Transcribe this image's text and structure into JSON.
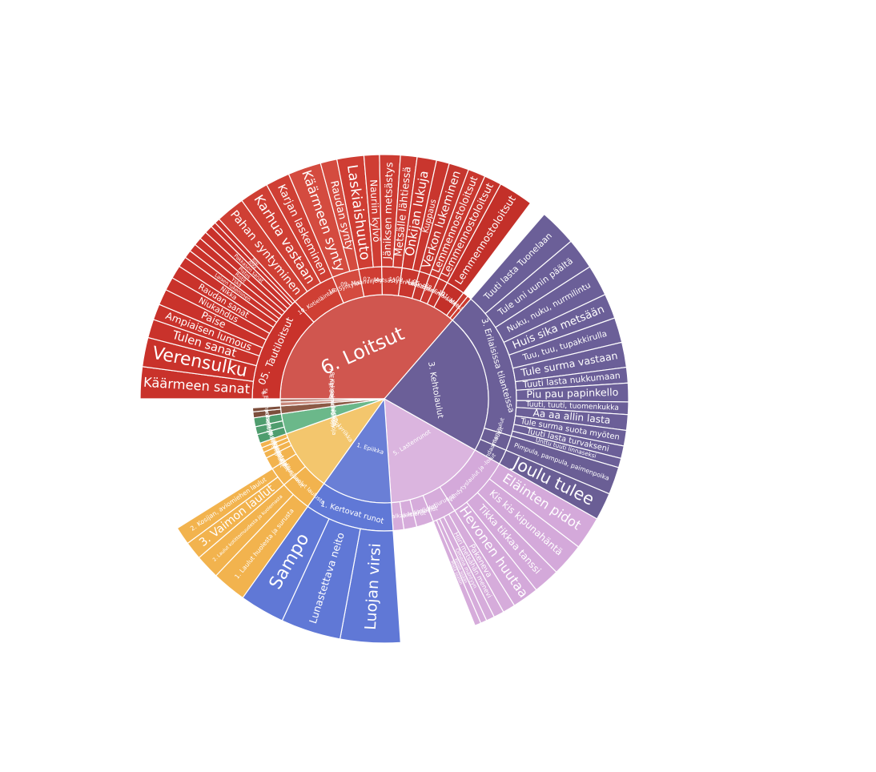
{
  "chart_data": {
    "type": "sunburst",
    "center": {
      "label": ""
    },
    "unit": "relative share (estimated)",
    "nodes": [
      {
        "id": "loitsut",
        "label": "6. Loitsut",
        "color": "#d0564f",
        "value": 30,
        "children": [
          {
            "id": "tautiloitsut",
            "label": "05. Tautiloitsut",
            "color": "#c9322b",
            "value": 8,
            "children": [
              {
                "label": "Käärmeen sanat",
                "value": 1.2
              },
              {
                "label": "Verensulku",
                "value": 1.1
              },
              {
                "label": "Tulen sanat",
                "value": 0.7
              },
              {
                "label": "Ampiaisen lumous",
                "value": 0.6
              },
              {
                "label": "Paise",
                "value": 0.6
              },
              {
                "label": "Niukahdus",
                "value": 0.5
              },
              {
                "label": "Raudan sanat",
                "value": 0.5
              },
              {
                "label": "Nikka",
                "value": 0.4
              },
              {
                "label": "Laisen lukeminen",
                "value": 0.3
              },
              {
                "label": "Yskä",
                "value": 0.3
              },
              {
                "label": "Ristit",
                "value": 0.3
              },
              {
                "label": "Pistos",
                "value": 0.3
              },
              {
                "label": "Pakkasen sanat",
                "value": 0.3
              },
              {
                "label": "Ähky",
                "value": 0.2
              },
              {
                "label": "Riisi",
                "value": 0.2
              }
            ]
          },
          {
            "id": "kotielainta",
            "label": "10. Kotieläintalous",
            "color": "#cf3f34",
            "value": 3.3,
            "children": [
              {
                "label": "Pahan syntyminen",
                "value": 0.6
              },
              {
                "label": "Karhua vastaan",
                "value": 0.6
              },
              {
                "label": "Karjan laskeminen",
                "value": 0.5
              }
            ]
          },
          {
            "id": "syntyloitsut",
            "label": "16. Syntyloitsut",
            "color": "#d44b3f",
            "value": 2.0,
            "children": [
              {
                "label": "Käärmeen synty",
                "value": 0.8
              },
              {
                "label": "Raudan synty",
                "value": 0.4
              }
            ]
          },
          {
            "id": "maanviljely",
            "label": "09. Maanviljelysloitsut",
            "color": "#cf3d33",
            "value": 1.7,
            "children": [
              {
                "label": "Laskiaishuuto",
                "value": 0.7
              },
              {
                "label": "Nauriin kylvö",
                "value": 0.4
              }
            ]
          },
          {
            "id": "metsastys",
            "label": "07. Metsästysloitsut",
            "color": "#cc3b32",
            "value": 1.5,
            "children": [
              {
                "label": "Jäniksen metsästys",
                "value": 0.5
              },
              {
                "label": "Metsälle lähtiessä",
                "value": 0.4
              }
            ]
          },
          {
            "id": "eritiloissa",
            "label": "15. Eri tiloissa",
            "color": "#c9362e",
            "value": 1.3,
            "children": [
              {
                "label": "Onkijan lukuja",
                "value": 0.6
              },
              {
                "label": "Kuppaus",
                "value": 0.4
              }
            ]
          },
          {
            "id": "kalastus",
            "label": "08. Kalastusloitsut",
            "color": "#c5362e",
            "value": 0.8,
            "children": [
              {
                "label": "Verkon lukeminen",
                "value": 0.4
              }
            ]
          },
          {
            "id": "karjan",
            "label": "11. Karjan taudit",
            "color": "#c9382f",
            "value": 0.7,
            "children": [
              {
                "label": "Lemmennostoloitsut",
                "value": 0.4
              }
            ]
          },
          {
            "id": "parannus",
            "label": "06. Parannusloitsut",
            "color": "#c5342c",
            "value": 0.7,
            "children": [
              {
                "label": "Lemmennostoloitsut",
                "value": 0.5
              }
            ]
          },
          {
            "id": "muut_loitsut",
            "label": "28. Erilaisia loitsuja",
            "color": "#c33029",
            "value": 1.4,
            "children": [
              {
                "label": "Lemmennostoloitsut",
                "value": 0.6
              }
            ]
          },
          {
            "id": "lastenloitsut",
            "label": "13. Lastenloitsut",
            "color": "#c93a30",
            "value": 0.4,
            "children": []
          },
          {
            "id": "metsanpeitto",
            "label": "01. Metsän sanat",
            "color": "#cb3c31",
            "value": 0.3,
            "children": []
          }
        ]
      },
      {
        "id": "kehtolaulut",
        "label": "3. Kehtolaulut",
        "color": "#6b5f98",
        "value": 18,
        "children": [
          {
            "id": "erilaisissa",
            "label": "3. Erilaisissa tilanteissa",
            "color": "#6b5f98",
            "value": 15,
            "children": [
              {
                "label": "Tuuti lasta Tuonelaan",
                "value": 1.2
              },
              {
                "label": "Tule uni uunin päältä",
                "value": 1.0
              },
              {
                "label": "Nuku, nuku, nurmilintu",
                "value": 1.0
              },
              {
                "label": "Huis sika metsään",
                "value": 0.8
              },
              {
                "label": "Tuu, tuu, tupakkirulla",
                "value": 0.8
              },
              {
                "label": "Tule surma vastaan",
                "value": 0.8
              },
              {
                "label": "Tuuti lasta nukkumaan",
                "value": 0.5
              },
              {
                "label": "Piu pau papinkello",
                "value": 0.6
              },
              {
                "label": "Tuuti, tuuti, tuomenkukka",
                "value": 0.4
              },
              {
                "label": "Aa aa allin lasta",
                "value": 0.5
              },
              {
                "label": "Tule surma suota myöten",
                "value": 0.5
              },
              {
                "label": "Tuuti lasta turvakseni",
                "value": 0.4
              },
              {
                "label": "Unttu tuuti linnaseksi",
                "value": 0.3
              }
            ]
          },
          {
            "id": "paimenlaulut",
            "label": "2. Paimenlaulut",
            "color": "#6a5e95",
            "value": 1.5,
            "children": [
              {
                "label": "Pimpula, pampula, paimenpoika",
                "value": 0.9
              }
            ]
          },
          {
            "id": "kalendaari",
            "label": "7. Kalendaarilaulut",
            "color": "#6a5e95",
            "value": 1.5,
            "children": [
              {
                "label": "Joulu tulee",
                "value": 0.5
              }
            ]
          }
        ]
      },
      {
        "id": "lastenrunot",
        "label": "5. Lastenrunot",
        "color": "#dbb5df",
        "value": 13,
        "children": [
          {
            "id": "viihdytys",
            "label": "1. Viihdytyslaulut ja -lorut",
            "color": "#d4a9da",
            "value": 6.0,
            "children": [
              {
                "label": "Eläinten pidot",
                "value": 0.5
              },
              {
                "label": "Kis kis kipunahäntä",
                "value": 0.5
              },
              {
                "label": "Tikka tikkaa tanssi",
                "value": 0.4
              },
              {
                "label": "Hevonen huutaa",
                "value": 0.4
              }
            ]
          },
          {
            "id": "ketjurunot",
            "label": "2. Ketjurunot",
            "color": "#d6acdb",
            "value": 2.2,
            "children": [
              {
                "label": "Pakeneva",
                "value": 0.6
              },
              {
                "label": "Hiiri metsähän menevi",
                "value": 0.5
              },
              {
                "label": "Omena mäntyyn",
                "value": 0.4
              },
              {
                "label": "Kenen sisään",
                "value": 0.3
              },
              {
                "label": "Mistä saatiin",
                "value": 0.3
              }
            ]
          },
          {
            "id": "nimilorut",
            "label": "3. Nimilorut",
            "color": "#d6acdb",
            "value": 1.6,
            "children": []
          },
          {
            "id": "leikit",
            "label": "5. Leikit ja leikkilaulut",
            "color": "#d6acdb",
            "value": 1.2,
            "children": []
          },
          {
            "id": "leikinalk",
            "label": "4. Leikinalkajaislorut",
            "color": "#d6acdb",
            "value": 1.0,
            "children": []
          }
        ]
      },
      {
        "id": "epiikka",
        "label": "1. Epiikka",
        "color": "#6a7fd6",
        "value": 9,
        "children": [
          {
            "id": "kertovat",
            "label": "1. Kertovat runot",
            "color": "#6078d6",
            "value": 9,
            "children": [
              {
                "label": "Luojan virsi",
                "value": 0.8
              },
              {
                "label": "Lunastettava neito",
                "value": 0.8
              },
              {
                "label": "Sampo",
                "value": 0.6
              }
            ]
          }
        ]
      },
      {
        "id": "lyriikka",
        "label": "2. Lyriikka",
        "color": "#f3c66d",
        "value": 8,
        "children": [
          {
            "id": "laulut_laulusta",
            "label": "01. Laulut laulusta",
            "color": "#f2b34e",
            "value": 2.6,
            "children": [
              {
                "label": "1. Laulut huolesta ja surusta",
                "value": 1.4
              },
              {
                "label": "2. Laulut kotittomuudesta ja kuolemasta",
                "value": 1.0
              }
            ]
          },
          {
            "id": "valituslaulut",
            "label": "02. Valituslaulut",
            "color": "#f2b34e",
            "value": 1.6,
            "children": [
              {
                "label": "3. Vaimon laulut",
                "value": 0.5
              },
              {
                "label": "2. Kosijan, aviomiehen laulut",
                "value": 0.5
              }
            ]
          },
          {
            "id": "nuortenlaulut",
            "label": "07. Nuortenlaulut",
            "color": "#f2b34e",
            "value": 1.0,
            "children": []
          },
          {
            "id": "naistenlaulut",
            "label": "08. Naistenlaulut",
            "color": "#f2b34e",
            "value": 0.5,
            "children": []
          },
          {
            "id": "miestenlaulut",
            "label": "09. Miestenlaulut",
            "color": "#f2b34e",
            "value": 0.4,
            "children": []
          },
          {
            "id": "rakkauslaulut",
            "label": "06. Rakkauslaulut",
            "color": "#f2b34e",
            "value": 0.4,
            "children": []
          }
        ]
      },
      {
        "id": "haarunot",
        "label": "4. Häärunot",
        "color": "#6bb88a",
        "value": 2.6,
        "children": [
          {
            "id": "ylistys",
            "label": "5. Ylistys- ja pilkkalaulut",
            "color": "#4f9d6e",
            "value": 0.9,
            "children": []
          },
          {
            "id": "morsiamen_kotona",
            "label": "2. Morsiamen kotona",
            "color": "#4f9d6e",
            "value": 0.8,
            "children": []
          },
          {
            "id": "morsiamen_itketys",
            "label": "6. Morsiamen itketys",
            "color": "#4f9d6e",
            "value": 0.9,
            "children": []
          }
        ]
      },
      {
        "id": "sananlaskut",
        "label": "1. Sananlaskuja",
        "color": "#8c5a46",
        "value": 1.0,
        "children": [
          {
            "id": "sananlaskuja",
            "label": "1. Sananlaskuja",
            "color": "#7c4e3c",
            "value": 0.6,
            "children": []
          },
          {
            "id": "elainpuheet",
            "label": "5. Eläinpuheet",
            "color": "#7c4e3c",
            "value": 0.4,
            "children": []
          }
        ]
      },
      {
        "id": "erilaiset",
        "label": "7. Erilaisia pieniä runoja",
        "color": "#c8897c",
        "value": 0.5,
        "children": []
      },
      {
        "id": "kokoelma",
        "label": "8. Kokoelmia runoja",
        "color": "#b07264",
        "value": 0.4,
        "children": []
      }
    ]
  }
}
